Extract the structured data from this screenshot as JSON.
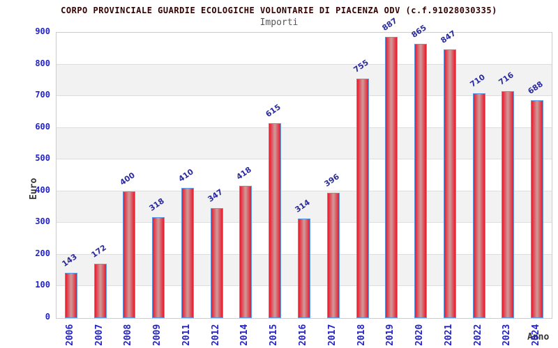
{
  "chart_data": {
    "type": "bar",
    "title": "CORPO PROVINCIALE GUARDIE ECOLOGICHE VOLONTARIE DI PIACENZA ODV (c.f.91028030335)",
    "subtitle": "Importi",
    "xlabel": "Anno",
    "ylabel": "Euro",
    "categories": [
      "2006",
      "2007",
      "2008",
      "2009",
      "2011",
      "2012",
      "2014",
      "2015",
      "2016",
      "2017",
      "2018",
      "2019",
      "2020",
      "2021",
      "2022",
      "2023",
      "2024"
    ],
    "values": [
      143,
      172,
      400,
      318,
      410,
      347,
      418,
      615,
      314,
      396,
      755,
      887,
      865,
      847,
      710,
      716,
      688
    ],
    "ylim": [
      0,
      900
    ],
    "ytick_step": 100,
    "grid": "horizontal-bands",
    "legend": "none",
    "colors": {
      "title": "#330000",
      "subtitle": "#555555",
      "axis_title": "#333333",
      "tick_label": "#2222cc",
      "value_label": "#2a2a9e",
      "bar_edge": "#e81a2c",
      "bar_center": "#cf9c9c",
      "bar_border": "#5b9ce8",
      "band_fill": "#f2f2f2",
      "gridline": "#dddddd",
      "plot_border": "#cccccc",
      "background": "#ffffff"
    }
  }
}
